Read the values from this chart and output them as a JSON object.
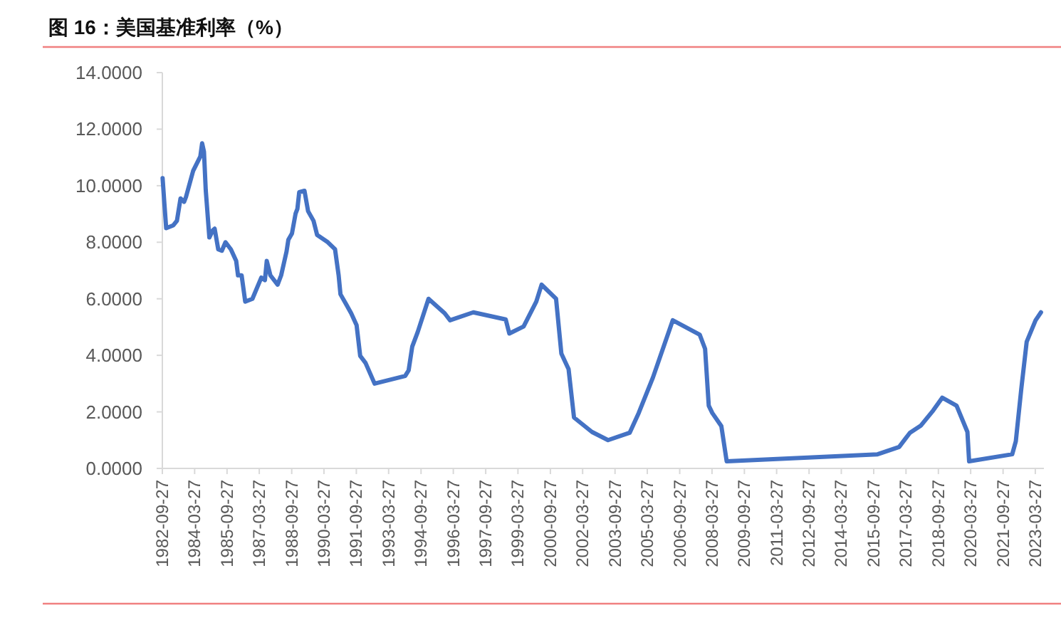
{
  "chart_data": {
    "type": "line",
    "title": "图 16：美国基准利率（%）",
    "x": [
      "1982-10",
      "1982-11",
      "1982-12",
      "1983-04",
      "1983-06",
      "1983-08",
      "1983-10",
      "1983-11",
      "1984-03",
      "1984-07",
      "1984-08",
      "1984-09",
      "1984-10",
      "1984-12",
      "1985-02",
      "1985-03",
      "1985-05",
      "1985-07",
      "1985-09",
      "1985-12",
      "1986-03",
      "1986-04",
      "1986-06",
      "1986-08",
      "1986-12",
      "1987-05",
      "1987-07",
      "1987-08",
      "1987-10",
      "1988-02",
      "1988-04",
      "1988-07",
      "1988-08",
      "1988-10",
      "1988-12",
      "1989-01",
      "1989-02",
      "1989-05",
      "1989-07",
      "1989-10",
      "1989-12",
      "1990-06",
      "1990-10",
      "1990-12",
      "1991-01",
      "1991-04",
      "1991-07",
      "1991-10",
      "1991-12",
      "1992-03",
      "1992-08",
      "1994-01",
      "1994-03",
      "1994-05",
      "1994-08",
      "1995-02",
      "1995-11",
      "1996-02",
      "1997-03",
      "1998-09",
      "1998-11",
      "1999-07",
      "2000-02",
      "2000-05",
      "2001-01",
      "2001-04",
      "2001-08",
      "2001-11",
      "2002-09",
      "2003-06",
      "2004-06",
      "2004-11",
      "2005-07",
      "2006-06",
      "2007-09",
      "2007-12",
      "2008-02",
      "2008-04",
      "2008-09",
      "2008-12",
      "2015-12",
      "2016-12",
      "2017-06",
      "2017-12",
      "2018-07",
      "2018-12",
      "2019-08",
      "2020-02",
      "2020-03",
      "2022-03",
      "2022-05",
      "2022-08",
      "2022-11",
      "2023-04",
      "2023-07"
    ],
    "series": [
      {
        "color": "#4472c4",
        "values": [
          10.27,
          9.35,
          8.5,
          8.6,
          8.76,
          9.55,
          9.43,
          9.6,
          10.52,
          11.03,
          11.5,
          11.2,
          9.85,
          8.17,
          8.43,
          8.48,
          7.75,
          7.7,
          8.0,
          7.75,
          7.34,
          6.83,
          6.83,
          5.9,
          6.0,
          6.75,
          6.66,
          7.34,
          6.83,
          6.5,
          6.83,
          7.67,
          8.09,
          8.31,
          9.01,
          9.18,
          9.77,
          9.82,
          9.1,
          8.76,
          8.26,
          8.0,
          7.75,
          6.83,
          6.16,
          5.83,
          5.49,
          5.07,
          3.98,
          3.73,
          3.0,
          3.27,
          3.47,
          4.31,
          4.82,
          6.0,
          5.49,
          5.24,
          5.52,
          5.27,
          4.77,
          5.02,
          5.9,
          6.5,
          6.0,
          4.06,
          3.51,
          1.8,
          1.29,
          1.0,
          1.26,
          1.96,
          3.22,
          5.24,
          4.73,
          4.23,
          2.22,
          1.96,
          1.5,
          0.25,
          0.5,
          0.76,
          1.26,
          1.51,
          2.05,
          2.5,
          2.22,
          1.29,
          0.25,
          0.5,
          0.96,
          2.8,
          4.48,
          5.24,
          5.52
        ]
      }
    ],
    "xlim": [
      "1982-09-27",
      "2023-08-20"
    ],
    "xticks": [
      "1982-09-27",
      "1984-03-27",
      "1985-09-27",
      "1987-03-27",
      "1988-09-27",
      "1990-03-27",
      "1991-09-27",
      "1993-03-27",
      "1994-09-27",
      "1996-03-27",
      "1997-09-27",
      "1999-03-27",
      "2000-09-27",
      "2002-03-27",
      "2003-09-27",
      "2005-03-27",
      "2006-09-27",
      "2008-03-27",
      "2009-09-27",
      "2011-03-27",
      "2012-09-27",
      "2014-03-27",
      "2015-09-27",
      "2017-03-27",
      "2018-09-27",
      "2020-03-27",
      "2021-09-27",
      "2023-03-27"
    ],
    "ylim": [
      0,
      14
    ],
    "yticks": [
      {
        "value": 0,
        "label": "0.0000"
      },
      {
        "value": 2,
        "label": "2.0000"
      },
      {
        "value": 4,
        "label": "4.0000"
      },
      {
        "value": 6,
        "label": "6.0000"
      },
      {
        "value": 8,
        "label": "8.0000"
      },
      {
        "value": 10,
        "label": "10.0000"
      },
      {
        "value": 12,
        "label": "12.0000"
      },
      {
        "value": 14,
        "label": "14.0000"
      }
    ],
    "grid": false,
    "marker": "none",
    "line_style": "solid"
  }
}
